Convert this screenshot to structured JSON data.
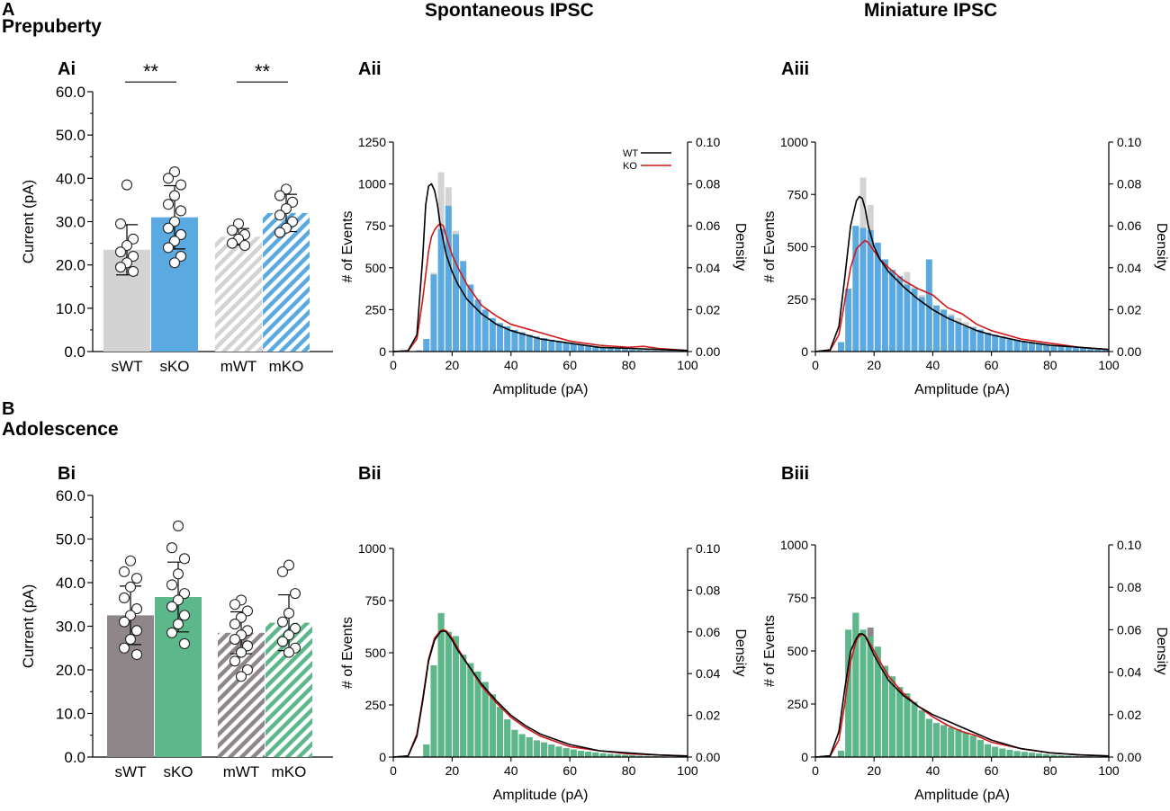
{
  "figure": {
    "sections": [
      {
        "letter": "A",
        "title": "Prepuberty"
      },
      {
        "letter": "B",
        "title": "Adolescence"
      }
    ],
    "column_titles": [
      "Spontaneous IPSC",
      "Miniature IPSC"
    ],
    "colors": {
      "wt_gray": "#d3d3d3",
      "pre_blue": "#5aa9e0",
      "adol_gray": "#8e8689",
      "adol_green": "#5cb88a",
      "wt_line": "#000000",
      "ko_line": "#d01818"
    }
  },
  "chart_data": [
    {
      "id": "Ai",
      "panel_label": "Ai",
      "type": "bar",
      "categories": [
        "sWT",
        "sKO",
        "mWT",
        "mKO"
      ],
      "values": [
        23.5,
        31.0,
        26.5,
        32.0
      ],
      "sd": [
        5.8,
        7.3,
        1.9,
        4.3
      ],
      "fills": [
        "solid",
        "solid",
        "hatched",
        "hatched"
      ],
      "colors": [
        "#d3d3d3",
        "#5aa9e0",
        "#d3d3d3",
        "#5aa9e0"
      ],
      "points": [
        [
          38.5,
          29.5,
          26.0,
          24.5,
          23.0,
          22.0,
          20.5,
          19.5,
          18.5
        ],
        [
          41.5,
          40.0,
          38.5,
          36.0,
          34.0,
          32.5,
          30.0,
          28.5,
          27.0,
          25.5,
          24.0,
          22.0,
          20.5
        ],
        [
          29.5,
          28.0,
          27.0,
          26.0,
          25.0,
          24.5
        ],
        [
          37.5,
          36.0,
          34.5,
          33.0,
          31.5,
          30.0,
          28.5,
          27.5
        ]
      ],
      "ylabel": "Current (pA)",
      "yticks": [
        "0.0",
        "10.0",
        "20.0",
        "30.0",
        "40.0",
        "50.0",
        "60.0"
      ],
      "ylim": [
        0,
        60
      ],
      "significance": [
        {
          "pair": [
            "sWT",
            "sKO"
          ],
          "label": "**",
          "at": 61.0
        },
        {
          "pair": [
            "mWT",
            "mKO"
          ],
          "label": "**",
          "at": 61.0
        }
      ]
    },
    {
      "id": "Aii",
      "panel_label": "Aii",
      "type": "histogram",
      "bin_width": 2.5,
      "bins_wt": [
        0,
        0,
        0,
        10,
        55,
        470,
        1070,
        980,
        720,
        480,
        340,
        250,
        200,
        160,
        140,
        120,
        105,
        90,
        80,
        70,
        60,
        55,
        48,
        40,
        35,
        30,
        26,
        22,
        18,
        15,
        12,
        10,
        8,
        6,
        5,
        4,
        3,
        2,
        2,
        1
      ],
      "bins_ko": [
        0,
        0,
        0,
        5,
        75,
        460,
        730,
        870,
        700,
        540,
        400,
        310,
        250,
        200,
        170,
        150,
        130,
        115,
        100,
        90,
        80,
        70,
        60,
        55,
        48,
        40,
        35,
        30,
        26,
        22,
        18,
        15,
        12,
        10,
        8,
        6,
        5,
        4,
        3,
        2
      ],
      "density_wt": {
        "x": [
          0,
          5,
          8,
          10,
          11,
          12,
          13,
          14,
          15,
          16,
          18,
          20,
          22,
          25,
          30,
          35,
          40,
          45,
          50,
          60,
          70,
          80,
          90,
          100
        ],
        "y": [
          0,
          0.0004,
          0.008,
          0.045,
          0.07,
          0.079,
          0.08,
          0.077,
          0.07,
          0.06,
          0.046,
          0.038,
          0.032,
          0.025,
          0.018,
          0.013,
          0.01,
          0.008,
          0.006,
          0.004,
          0.002,
          0.0015,
          0.001,
          0.0005
        ]
      },
      "density_ko": {
        "x": [
          0,
          5,
          8,
          10,
          12,
          13,
          14,
          15,
          16,
          17,
          18,
          20,
          22,
          25,
          30,
          35,
          40,
          50,
          60,
          70,
          80,
          85,
          90,
          100
        ],
        "y": [
          0,
          0.0003,
          0.006,
          0.025,
          0.048,
          0.055,
          0.058,
          0.06,
          0.061,
          0.06,
          0.055,
          0.046,
          0.04,
          0.032,
          0.022,
          0.017,
          0.013,
          0.009,
          0.005,
          0.003,
          0.002,
          0.0025,
          0.0015,
          0.0005
        ]
      },
      "legend": [
        {
          "label": "WT",
          "color": "#000000"
        },
        {
          "label": "KO",
          "color": "#d01818"
        }
      ],
      "ylabel": "# of Events",
      "y2label": "Density",
      "xlabel": "Amplitude (pA)",
      "xlim": [
        0,
        100
      ],
      "xticks": [
        "0",
        "20",
        "40",
        "60",
        "80",
        "100"
      ],
      "ylim": [
        0,
        1250
      ],
      "yticks": [
        "0",
        "250",
        "500",
        "750",
        "1000",
        "1250"
      ],
      "y2lim": [
        0,
        0.1
      ],
      "y2ticks": [
        "0.00",
        "0.02",
        "0.04",
        "0.06",
        "0.08",
        "0.10"
      ]
    },
    {
      "id": "Aiii",
      "panel_label": "Aiii",
      "type": "histogram",
      "bin_width": 2.5,
      "bins_wt": [
        0,
        0,
        0,
        20,
        200,
        600,
        830,
        700,
        500,
        420,
        380,
        350,
        380,
        310,
        270,
        240,
        220,
        200,
        180,
        160,
        140,
        120,
        105,
        90,
        80,
        70,
        62,
        55,
        48,
        42,
        36,
        32,
        28,
        24,
        20,
        16,
        13,
        10,
        8,
        6
      ],
      "bins_ko": [
        0,
        0,
        0,
        45,
        300,
        600,
        590,
        580,
        520,
        440,
        390,
        360,
        320,
        300,
        260,
        440,
        220,
        200,
        170,
        140,
        120,
        115,
        105,
        90,
        80,
        72,
        62,
        55,
        50,
        45,
        40,
        35,
        30,
        26,
        22,
        18,
        15,
        12,
        10,
        8
      ],
      "density_wt": {
        "x": [
          0,
          5,
          8,
          10,
          12,
          14,
          15,
          16,
          17,
          18,
          20,
          22,
          25,
          30,
          35,
          40,
          45,
          50,
          55,
          60,
          70,
          80,
          90,
          100
        ],
        "y": [
          0,
          0.0008,
          0.012,
          0.035,
          0.06,
          0.072,
          0.074,
          0.073,
          0.068,
          0.06,
          0.05,
          0.044,
          0.038,
          0.031,
          0.025,
          0.02,
          0.016,
          0.013,
          0.01,
          0.008,
          0.005,
          0.003,
          0.002,
          0.001
        ]
      },
      "density_ko": {
        "x": [
          0,
          5,
          8,
          10,
          12,
          14,
          16,
          17,
          18,
          20,
          22,
          25,
          30,
          35,
          40,
          45,
          50,
          55,
          60,
          70,
          80,
          90,
          100
        ],
        "y": [
          0,
          0.0005,
          0.008,
          0.024,
          0.04,
          0.049,
          0.052,
          0.053,
          0.052,
          0.048,
          0.044,
          0.04,
          0.034,
          0.03,
          0.027,
          0.021,
          0.018,
          0.013,
          0.01,
          0.006,
          0.004,
          0.002,
          0.001
        ]
      },
      "ylabel": "# of Events",
      "y2label": "Density",
      "xlabel": "Amplitude (pA)",
      "xlim": [
        0,
        100
      ],
      "xticks": [
        "0",
        "20",
        "40",
        "60",
        "80",
        "100"
      ],
      "ylim": [
        0,
        1000
      ],
      "yticks": [
        "0",
        "250",
        "500",
        "750",
        "1000"
      ],
      "y2lim": [
        0,
        0.1
      ],
      "y2ticks": [
        "0.00",
        "0.02",
        "0.04",
        "0.06",
        "0.08",
        "0.10"
      ]
    },
    {
      "id": "Bi",
      "panel_label": "Bi",
      "type": "bar",
      "categories": [
        "sWT",
        "sKO",
        "mWT",
        "mKO"
      ],
      "values": [
        32.5,
        36.7,
        28.5,
        30.8
      ],
      "sd": [
        6.7,
        8.0,
        4.8,
        6.4
      ],
      "fills": [
        "solid",
        "solid",
        "hatched",
        "hatched"
      ],
      "colors": [
        "#8e8689",
        "#5cb88a",
        "#8e8689",
        "#5cb88a"
      ],
      "points": [
        [
          45.0,
          42.5,
          41.0,
          39.0,
          36.5,
          34.0,
          32.5,
          31.0,
          29.0,
          27.0,
          25.0,
          23.5
        ],
        [
          53.0,
          48.0,
          45.5,
          42.0,
          39.5,
          37.5,
          36.0,
          34.5,
          32.5,
          30.5,
          28.5,
          26.0
        ],
        [
          36.0,
          35.0,
          33.5,
          32.0,
          30.5,
          29.0,
          28.0,
          27.0,
          25.5,
          24.0,
          22.0,
          20.0,
          18.5
        ],
        [
          44.0,
          42.5,
          37.5,
          33.0,
          31.0,
          29.5,
          28.0,
          26.5,
          25.0,
          24.0
        ]
      ],
      "ylabel": "Current (pA)",
      "yticks": [
        "0.0",
        "10.0",
        "20.0",
        "30.0",
        "40.0",
        "50.0",
        "60.0"
      ],
      "ylim": [
        0,
        60
      ]
    },
    {
      "id": "Bii",
      "panel_label": "Bii",
      "type": "histogram",
      "bin_width": 2.5,
      "bins_wt": [
        0,
        0,
        0,
        0,
        60,
        440,
        690,
        600,
        580,
        490,
        450,
        410,
        360,
        300,
        240,
        180,
        130,
        110,
        95,
        80,
        70,
        60,
        50,
        42,
        36,
        30,
        26,
        22,
        18,
        15,
        12,
        10,
        8,
        6,
        5,
        4,
        3,
        2,
        2,
        1
      ],
      "bins_ko": [
        0,
        0,
        0,
        0,
        60,
        440,
        690,
        600,
        580,
        490,
        450,
        410,
        360,
        300,
        240,
        180,
        130,
        110,
        95,
        80,
        70,
        60,
        50,
        42,
        36,
        30,
        26,
        22,
        18,
        15,
        12,
        10,
        8,
        6,
        5,
        4,
        3,
        2,
        2,
        1
      ],
      "density_wt": {
        "x": [
          0,
          5,
          8,
          10,
          12,
          14,
          16,
          17,
          18,
          20,
          22,
          25,
          30,
          35,
          40,
          45,
          50,
          60,
          70,
          80,
          90,
          100
        ],
        "y": [
          0,
          0.0005,
          0.01,
          0.027,
          0.046,
          0.056,
          0.06,
          0.0605,
          0.06,
          0.056,
          0.051,
          0.045,
          0.035,
          0.027,
          0.02,
          0.015,
          0.011,
          0.006,
          0.003,
          0.002,
          0.001,
          0.0005
        ]
      },
      "density_ko": {
        "x": [
          0,
          5,
          8,
          10,
          12,
          14,
          16,
          17,
          18,
          20,
          22,
          25,
          30,
          35,
          40,
          45,
          50,
          60,
          70,
          80,
          90,
          100
        ],
        "y": [
          0,
          0.0005,
          0.011,
          0.028,
          0.047,
          0.057,
          0.0605,
          0.061,
          0.0605,
          0.057,
          0.052,
          0.045,
          0.034,
          0.026,
          0.019,
          0.014,
          0.01,
          0.005,
          0.003,
          0.0015,
          0.001,
          0.0005
        ]
      },
      "ylabel": "# of Events",
      "y2label": "Density",
      "xlabel": "Amplitude (pA)",
      "xlim": [
        0,
        100
      ],
      "xticks": [
        "0",
        "20",
        "40",
        "60",
        "80",
        "100"
      ],
      "ylim": [
        0,
        1000
      ],
      "yticks": [
        "0",
        "250",
        "500",
        "750",
        "1000"
      ],
      "y2lim": [
        0,
        0.1
      ],
      "y2ticks": [
        "0.00",
        "0.02",
        "0.04",
        "0.06",
        "0.08",
        "0.10"
      ]
    },
    {
      "id": "Biii",
      "panel_label": "Biii",
      "type": "histogram",
      "bin_width": 2.5,
      "bins_wt": [
        0,
        0,
        0,
        30,
        600,
        680,
        600,
        610,
        520,
        430,
        380,
        330,
        300,
        260,
        220,
        180,
        160,
        150,
        140,
        130,
        115,
        100,
        80,
        60,
        48,
        40,
        34,
        28,
        24,
        20,
        16,
        13,
        10,
        8,
        6,
        5,
        4,
        3,
        2,
        1
      ],
      "bins_ko": [
        0,
        0,
        0,
        30,
        600,
        680,
        600,
        570,
        520,
        430,
        380,
        330,
        300,
        260,
        220,
        180,
        160,
        150,
        140,
        130,
        115,
        100,
        80,
        60,
        48,
        40,
        34,
        28,
        24,
        20,
        16,
        13,
        10,
        8,
        6,
        5,
        4,
        3,
        2,
        1
      ],
      "density_wt": {
        "x": [
          0,
          5,
          8,
          10,
          12,
          14,
          15,
          16,
          17,
          18,
          20,
          22,
          25,
          30,
          35,
          40,
          45,
          50,
          55,
          60,
          70,
          80,
          90,
          100
        ],
        "y": [
          0,
          0.0006,
          0.012,
          0.032,
          0.05,
          0.056,
          0.058,
          0.058,
          0.057,
          0.054,
          0.048,
          0.043,
          0.036,
          0.029,
          0.024,
          0.02,
          0.017,
          0.014,
          0.011,
          0.008,
          0.004,
          0.002,
          0.001,
          0.0005
        ]
      },
      "density_ko": {
        "x": [
          0,
          5,
          8,
          10,
          12,
          14,
          15,
          16,
          17,
          18,
          20,
          22,
          25,
          30,
          35,
          40,
          45,
          50,
          55,
          60,
          70,
          80,
          90,
          100
        ],
        "y": [
          0,
          0.0004,
          0.008,
          0.025,
          0.045,
          0.055,
          0.057,
          0.058,
          0.057,
          0.055,
          0.05,
          0.045,
          0.038,
          0.03,
          0.024,
          0.019,
          0.015,
          0.012,
          0.01,
          0.007,
          0.004,
          0.002,
          0.001,
          0.0005
        ]
      },
      "ylabel": "# of Events",
      "y2label": "Density",
      "xlabel": "Amplitude (pA)",
      "xlim": [
        0,
        100
      ],
      "xticks": [
        "0",
        "20",
        "40",
        "60",
        "80",
        "100"
      ],
      "ylim": [
        0,
        1000
      ],
      "yticks": [
        "0",
        "250",
        "500",
        "750",
        "1000"
      ],
      "y2lim": [
        0,
        0.1
      ],
      "y2ticks": [
        "0.00",
        "0.02",
        "0.04",
        "0.06",
        "0.08",
        "0.10"
      ]
    }
  ]
}
